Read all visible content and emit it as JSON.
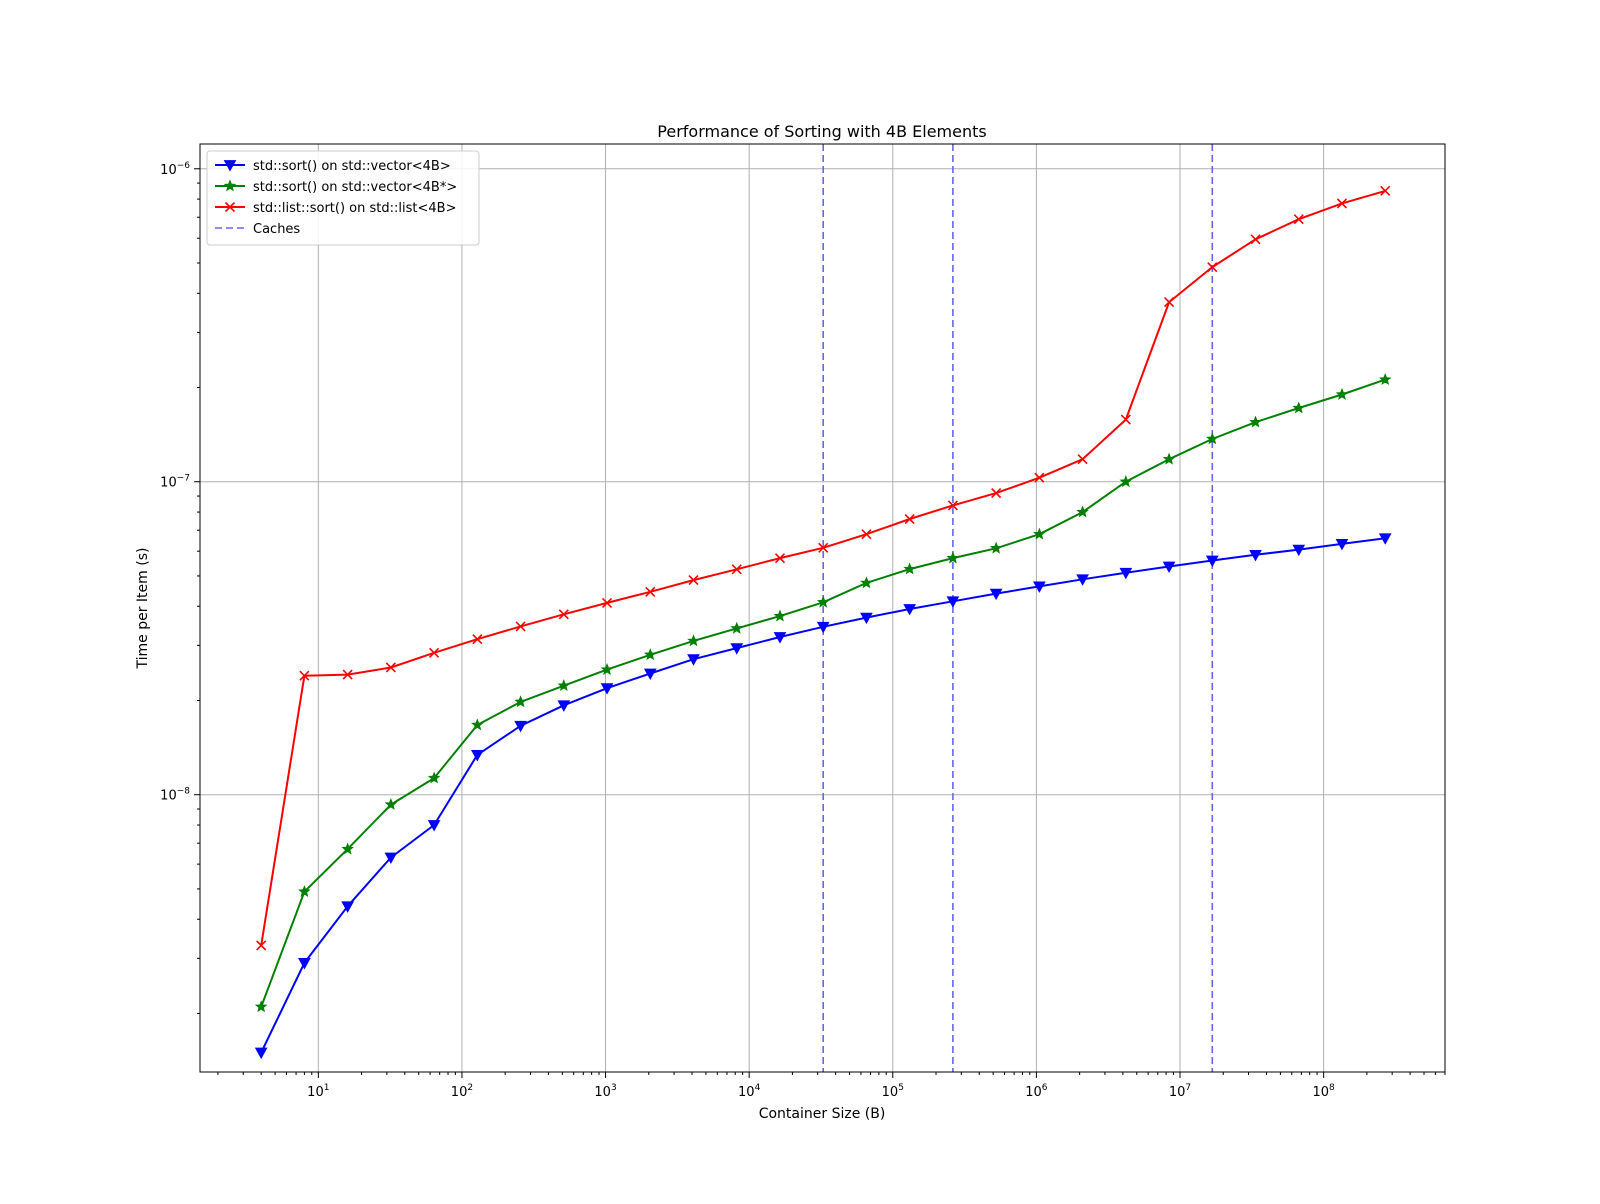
{
  "chart_data": {
    "type": "line",
    "title": "Performance of Sorting with 4B Elements",
    "xlabel": "Container Size (B)",
    "ylabel": "Time per Item (s)",
    "xscale": "log",
    "yscale": "log",
    "xlim": [
      1.5,
      700000000
    ],
    "ylim": [
      1.3e-09,
      1.2e-06
    ],
    "grid": true,
    "legend_position": "upper left",
    "x_ticks": [
      {
        "value": 10,
        "base": "10",
        "exp": "1"
      },
      {
        "value": 100,
        "base": "10",
        "exp": "2"
      },
      {
        "value": 1000,
        "base": "10",
        "exp": "3"
      },
      {
        "value": 10000,
        "base": "10",
        "exp": "4"
      },
      {
        "value": 100000,
        "base": "10",
        "exp": "5"
      },
      {
        "value": 1000000,
        "base": "10",
        "exp": "6"
      },
      {
        "value": 10000000,
        "base": "10",
        "exp": "7"
      },
      {
        "value": 100000000,
        "base": "10",
        "exp": "8"
      }
    ],
    "y_ticks": [
      {
        "value": 1e-08,
        "base": "10",
        "exp": "−8"
      },
      {
        "value": 1e-07,
        "base": "10",
        "exp": "−7"
      },
      {
        "value": 1e-06,
        "base": "10",
        "exp": "−6"
      }
    ],
    "x": [
      4,
      8,
      16,
      32,
      64,
      128,
      256,
      512,
      1024,
      2048,
      4096,
      8192,
      16384,
      32768,
      65536,
      131072,
      262144,
      524288,
      1048576,
      2097152,
      4194304,
      8388608,
      16777216,
      33554432,
      67108864,
      134217728,
      268435456
    ],
    "series": [
      {
        "name": "std::sort() on std::vector<4B>",
        "color": "#0000ff",
        "marker": "triangle-down",
        "values": [
          1.5e-09,
          2.9e-09,
          4.4e-09,
          6.3e-09,
          8e-09,
          1.34e-08,
          1.66e-08,
          1.93e-08,
          2.19e-08,
          2.44e-08,
          2.71e-08,
          2.94e-08,
          3.19e-08,
          3.44e-08,
          3.68e-08,
          3.92e-08,
          4.15e-08,
          4.39e-08,
          4.63e-08,
          4.88e-08,
          5.12e-08,
          5.36e-08,
          5.6e-08,
          5.84e-08,
          6.07e-08,
          6.33e-08,
          6.6e-08
        ]
      },
      {
        "name": "std::sort() on std::vector<4B*>",
        "color": "#008000",
        "marker": "star",
        "values": [
          2.1e-09,
          4.9e-09,
          6.7e-09,
          9.3e-09,
          1.13e-08,
          1.67e-08,
          1.98e-08,
          2.23e-08,
          2.51e-08,
          2.8e-08,
          3.1e-08,
          3.4e-08,
          3.72e-08,
          4.12e-08,
          4.75e-08,
          5.26e-08,
          5.7e-08,
          6.13e-08,
          6.8e-08,
          8e-08,
          1e-07,
          1.18e-07,
          1.37e-07,
          1.55e-07,
          1.72e-07,
          1.9e-07,
          2.12e-07
        ]
      },
      {
        "name": "std::list::sort() on std::list<4B>",
        "color": "#ff0000",
        "marker": "x",
        "values": [
          3.3e-09,
          2.4e-08,
          2.42e-08,
          2.55e-08,
          2.84e-08,
          3.14e-08,
          3.45e-08,
          3.77e-08,
          4.1e-08,
          4.45e-08,
          4.85e-08,
          5.25e-08,
          5.7e-08,
          6.15e-08,
          6.8e-08,
          7.6e-08,
          8.4e-08,
          9.2e-08,
          1.03e-07,
          1.18e-07,
          1.58e-07,
          3.75e-07,
          4.85e-07,
          5.95e-07,
          6.9e-07,
          7.75e-07,
          8.5e-07
        ]
      }
    ],
    "reference_lines": {
      "name": "Caches",
      "color": "#6666ee",
      "style": "dashed",
      "x": [
        32768,
        262144,
        16777216
      ]
    }
  }
}
